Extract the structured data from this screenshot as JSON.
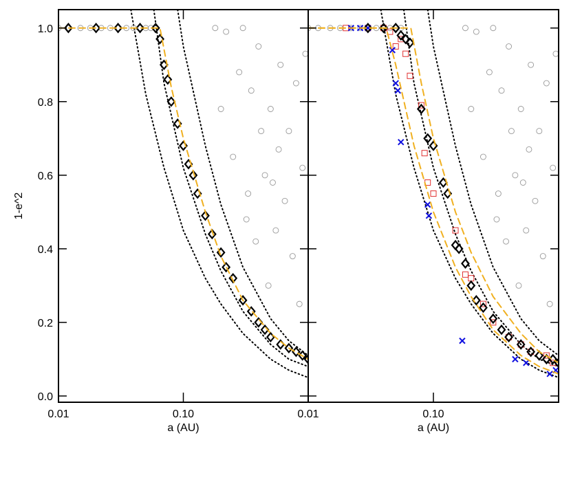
{
  "chart_data": [
    {
      "type": "scatter",
      "xlabel": "a (AU)",
      "ylabel": "1-e^2",
      "xscale": "log",
      "xlim": [
        0.01,
        1
      ],
      "ylim": [
        -0.017,
        1.05
      ],
      "xticks": [
        {
          "value": 0.01,
          "label": "0.01"
        },
        {
          "value": 0.1,
          "label": "0.10"
        }
      ],
      "yticks": [
        {
          "value": 0,
          "label": "0.0"
        },
        0.2,
        0.4,
        0.6,
        0.8,
        {
          "value": 1,
          "label": "1.0"
        }
      ],
      "series": [
        {
          "line": "dotted",
          "color": "#000000",
          "x": [
            0.038,
            0.05,
            0.07,
            0.1,
            0.15,
            0.2,
            0.3,
            0.5,
            0.7,
            1.0
          ],
          "values": [
            1.05,
            0.82,
            0.62,
            0.45,
            0.32,
            0.25,
            0.17,
            0.1,
            0.07,
            0.05
          ]
        },
        {
          "line": "dotted",
          "color": "#000000",
          "x": [
            0.058,
            0.07,
            0.1,
            0.15,
            0.2,
            0.3,
            0.5,
            0.7,
            1.0
          ],
          "values": [
            1.05,
            0.85,
            0.62,
            0.44,
            0.34,
            0.23,
            0.14,
            0.1,
            0.08
          ]
        },
        {
          "line": "dotted",
          "color": "#000000",
          "x": [
            0.09,
            0.1,
            0.15,
            0.2,
            0.3,
            0.5,
            0.7,
            1.0
          ],
          "values": [
            1.05,
            0.95,
            0.68,
            0.52,
            0.35,
            0.21,
            0.15,
            0.11
          ]
        },
        {
          "marker": "circle",
          "color": "#999999",
          "x": [
            0.01,
            0.012,
            0.015,
            0.018,
            0.022,
            0.026,
            0.03,
            0.035,
            0.04,
            0.045,
            0.05,
            0.055,
            0.18,
            0.22,
            0.3,
            0.35,
            0.4,
            0.5,
            0.6,
            0.8,
            0.25,
            0.33,
            0.45,
            0.55,
            0.7,
            0.9,
            0.28,
            0.38,
            0.48,
            0.65,
            0.75,
            0.2,
            0.42,
            0.58,
            0.85,
            0.32,
            0.52,
            0.95
          ],
          "values": [
            1,
            1,
            1,
            1,
            1,
            1,
            1,
            1,
            1,
            1,
            1,
            1,
            1,
            0.99,
            1,
            0.83,
            0.95,
            0.78,
            0.9,
            0.85,
            0.65,
            0.55,
            0.6,
            0.45,
            0.72,
            0.62,
            0.88,
            0.42,
            0.3,
            0.53,
            0.38,
            0.78,
            0.72,
            0.67,
            0.25,
            0.48,
            0.58,
            0.93
          ]
        },
        {
          "marker": "diamond",
          "color": "#000000",
          "x": [
            0.012,
            0.02,
            0.03,
            0.045,
            0.06,
            0.065,
            0.07,
            0.075,
            0.08,
            0.09,
            0.1,
            0.11,
            0.12,
            0.13,
            0.15,
            0.17,
            0.2,
            0.22,
            0.25,
            0.3,
            0.35,
            0.4,
            0.45,
            0.5,
            0.6,
            0.7,
            0.8,
            0.9,
            1.0
          ],
          "values": [
            1,
            1,
            1,
            1,
            1,
            0.97,
            0.9,
            0.86,
            0.8,
            0.74,
            0.68,
            0.63,
            0.6,
            0.55,
            0.49,
            0.44,
            0.39,
            0.35,
            0.32,
            0.26,
            0.23,
            0.2,
            0.18,
            0.16,
            0.14,
            0.13,
            0.12,
            0.11,
            0.1
          ]
        },
        {
          "line": "dashed",
          "color": "#f0b020",
          "x": [
            0.01,
            0.065,
            0.08,
            0.1,
            0.15,
            0.2,
            0.3,
            0.5,
            0.7,
            1.0
          ],
          "values": [
            1,
            1,
            0.84,
            0.7,
            0.5,
            0.38,
            0.26,
            0.17,
            0.13,
            0.1
          ]
        }
      ]
    },
    {
      "type": "scatter",
      "xlabel": "a (AU)",
      "xscale": "log",
      "xlim": [
        0.01,
        1
      ],
      "ylim": [
        -0.017,
        1.05
      ],
      "xticks": [
        {
          "value": 0.01,
          "label": "0.01"
        },
        {
          "value": 0.1,
          "label": "0.10"
        }
      ],
      "yticks": [
        0,
        0.2,
        0.4,
        0.6,
        0.8,
        1
      ],
      "series": [
        {
          "line": "dotted",
          "color": "#000000",
          "x": [
            0.038,
            0.05,
            0.07,
            0.1,
            0.15,
            0.2,
            0.3,
            0.5,
            0.7,
            1.0
          ],
          "values": [
            1.05,
            0.82,
            0.62,
            0.45,
            0.32,
            0.25,
            0.17,
            0.1,
            0.07,
            0.05
          ]
        },
        {
          "line": "dotted",
          "color": "#000000",
          "x": [
            0.058,
            0.07,
            0.1,
            0.15,
            0.2,
            0.3,
            0.5,
            0.7,
            1.0
          ],
          "values": [
            1.05,
            0.85,
            0.62,
            0.44,
            0.34,
            0.23,
            0.14,
            0.1,
            0.08
          ]
        },
        {
          "line": "dotted",
          "color": "#000000",
          "x": [
            0.09,
            0.1,
            0.15,
            0.2,
            0.3,
            0.5,
            0.7,
            1.0
          ],
          "values": [
            1.05,
            0.95,
            0.68,
            0.52,
            0.35,
            0.21,
            0.15,
            0.11
          ]
        },
        {
          "marker": "circle",
          "color": "#999999",
          "x": [
            0.01,
            0.012,
            0.015,
            0.018,
            0.022,
            0.026,
            0.03,
            0.035,
            0.04,
            0.045,
            0.05,
            0.055,
            0.18,
            0.22,
            0.3,
            0.35,
            0.4,
            0.5,
            0.6,
            0.8,
            0.25,
            0.33,
            0.45,
            0.55,
            0.7,
            0.9,
            0.28,
            0.38,
            0.48,
            0.65,
            0.75,
            0.2,
            0.42,
            0.58,
            0.85,
            0.32,
            0.52,
            0.95
          ],
          "values": [
            1,
            1,
            1,
            1,
            1,
            1,
            1,
            1,
            1,
            1,
            1,
            1,
            1,
            0.99,
            1,
            0.83,
            0.95,
            0.78,
            0.9,
            0.85,
            0.65,
            0.55,
            0.6,
            0.45,
            0.72,
            0.62,
            0.88,
            0.42,
            0.3,
            0.53,
            0.38,
            0.78,
            0.72,
            0.67,
            0.25,
            0.48,
            0.58,
            0.93
          ]
        },
        {
          "marker": "square",
          "color": "#e03030",
          "x": [
            0.02,
            0.03,
            0.04,
            0.045,
            0.05,
            0.055,
            0.06,
            0.065,
            0.08,
            0.085,
            0.09,
            0.1,
            0.15,
            0.18,
            0.2,
            0.25,
            0.3,
            0.4,
            0.5,
            0.6,
            0.8,
            0.9
          ],
          "values": [
            1,
            1,
            1,
            0.99,
            0.95,
            0.97,
            0.93,
            0.87,
            0.79,
            0.66,
            0.58,
            0.55,
            0.45,
            0.33,
            0.32,
            0.25,
            0.2,
            0.16,
            0.14,
            0.12,
            0.11,
            0.09
          ]
        },
        {
          "marker": "x",
          "color": "#1010e0",
          "x": [
            0.022,
            0.026,
            0.03,
            0.047,
            0.05,
            0.052,
            0.055,
            0.09,
            0.092,
            0.17,
            0.45,
            0.55,
            0.85,
            0.95
          ],
          "values": [
            1,
            1,
            1,
            0.94,
            0.85,
            0.83,
            0.69,
            0.52,
            0.49,
            0.15,
            0.1,
            0.09,
            0.06,
            0.07
          ]
        },
        {
          "marker": "diamond",
          "color": "#000000",
          "x": [
            0.03,
            0.04,
            0.05,
            0.055,
            0.06,
            0.065,
            0.08,
            0.09,
            0.1,
            0.12,
            0.13,
            0.15,
            0.16,
            0.18,
            0.2,
            0.22,
            0.25,
            0.3,
            0.35,
            0.4,
            0.5,
            0.6,
            0.7,
            0.8,
            0.9,
            1.0
          ],
          "values": [
            1,
            1,
            1,
            0.98,
            0.97,
            0.96,
            0.78,
            0.7,
            0.68,
            0.58,
            0.55,
            0.41,
            0.4,
            0.36,
            0.3,
            0.26,
            0.24,
            0.21,
            0.18,
            0.16,
            0.14,
            0.12,
            0.11,
            0.1,
            0.1,
            0.09
          ]
        },
        {
          "line": "dashed",
          "color": "#f0b020",
          "x": [
            0.01,
            0.042,
            0.05,
            0.07,
            0.1,
            0.15,
            0.2,
            0.3,
            0.5,
            0.7,
            1.0
          ],
          "values": [
            1,
            1,
            0.9,
            0.68,
            0.5,
            0.35,
            0.27,
            0.18,
            0.11,
            0.08,
            0.06
          ]
        },
        {
          "line": "dashed",
          "color": "#f0b020",
          "x": [
            0.01,
            0.066,
            0.08,
            0.1,
            0.15,
            0.2,
            0.3,
            0.5,
            0.7,
            1.0
          ],
          "values": [
            1,
            1,
            0.85,
            0.7,
            0.5,
            0.39,
            0.27,
            0.17,
            0.12,
            0.09
          ]
        }
      ]
    }
  ]
}
